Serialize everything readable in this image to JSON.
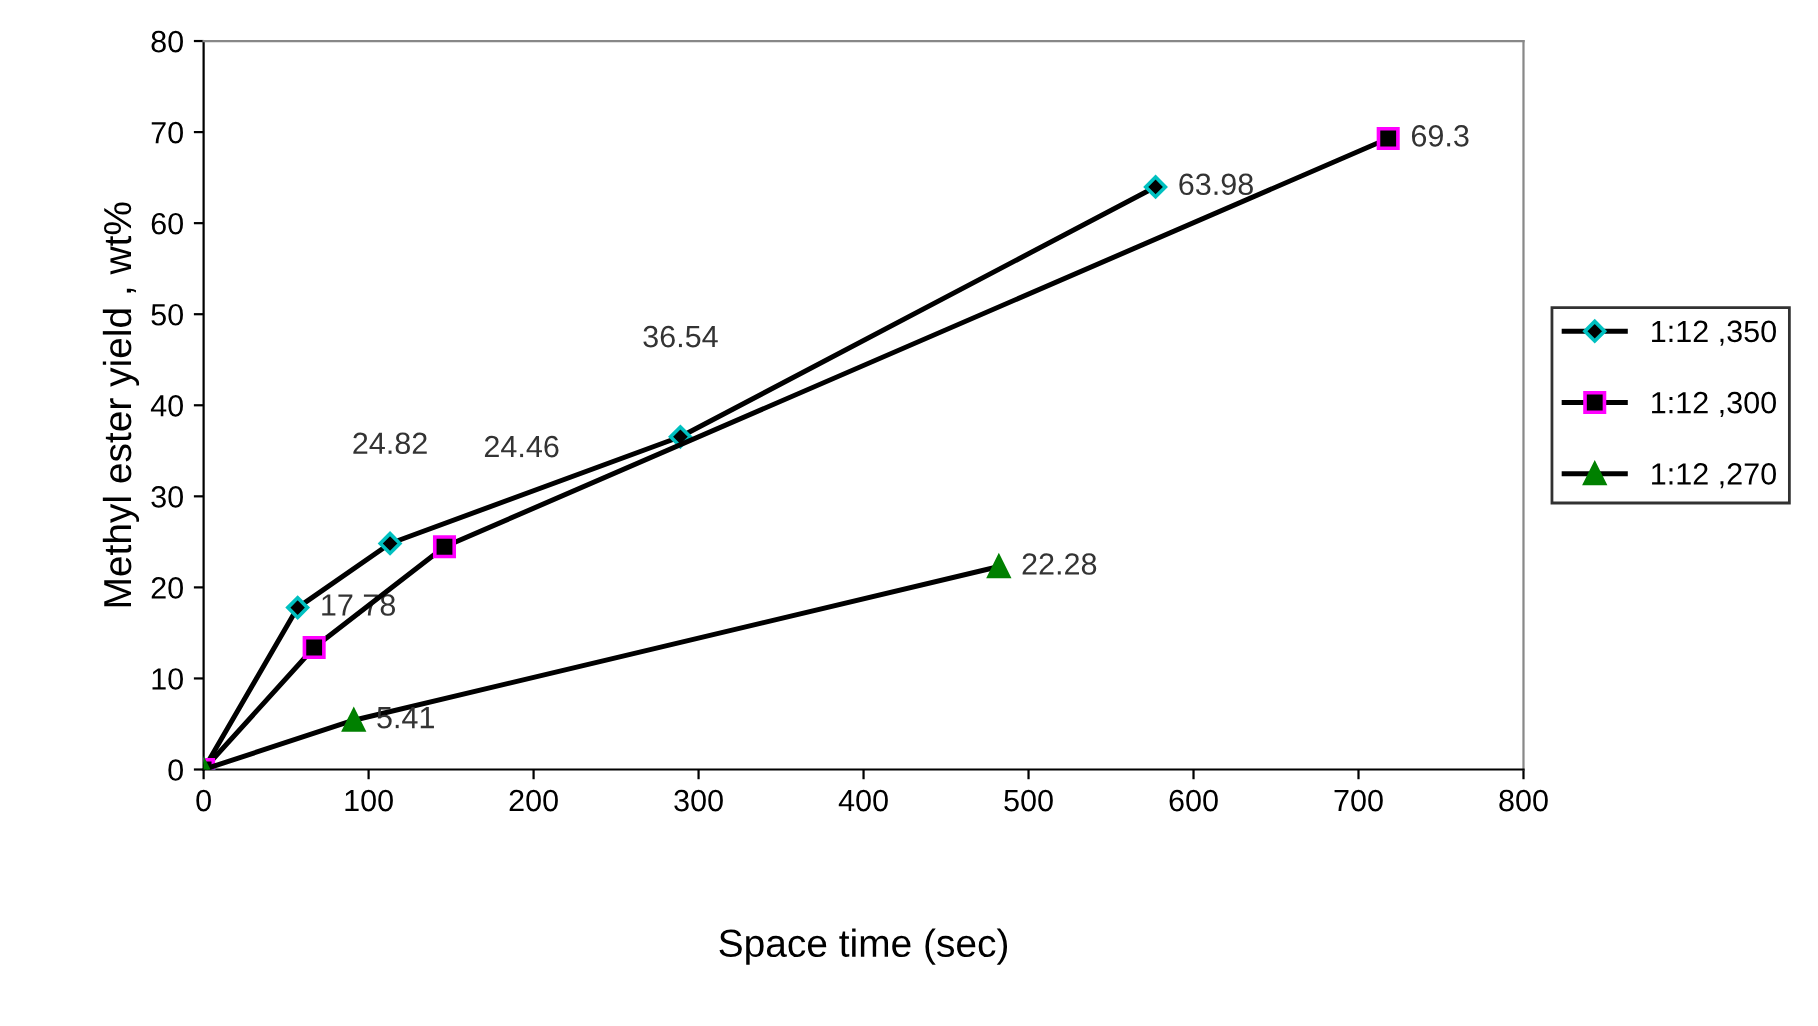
{
  "chart_data": {
    "type": "line",
    "xlabel": "Space time (sec)",
    "ylabel": "Methyl ester yield , wt%",
    "xlim": [
      0,
      800
    ],
    "xticks": [
      0,
      100,
      200,
      300,
      400,
      500,
      600,
      700,
      800
    ],
    "ylim": [
      0,
      80
    ],
    "yticks": [
      0,
      10,
      20,
      30,
      40,
      50,
      60,
      70,
      80
    ],
    "grid": false,
    "legend": "right",
    "series": [
      {
        "name": "1:12 ,350",
        "color": "#00c0c0",
        "marker": "diamond",
        "x": [
          0,
          57,
          113,
          289,
          577
        ],
        "values": [
          0,
          17.78,
          24.82,
          36.54,
          63.98
        ],
        "value_labels": [
          null,
          "17.78",
          "24.82",
          "36.54",
          "63.98"
        ]
      },
      {
        "name": "1:12 ,300",
        "color": "#ff00ff",
        "marker": "square",
        "x": [
          0,
          67,
          146,
          718
        ],
        "values": [
          0,
          13.4,
          24.46,
          69.3
        ],
        "value_labels": [
          null,
          null,
          "24.46",
          "69.3"
        ]
      },
      {
        "name": "1:12 ,270",
        "color": "#008000",
        "marker": "triangle",
        "x": [
          0,
          91,
          482
        ],
        "values": [
          0,
          5.41,
          22.28
        ],
        "value_labels": [
          null,
          "5.41",
          "22.28"
        ]
      }
    ]
  }
}
